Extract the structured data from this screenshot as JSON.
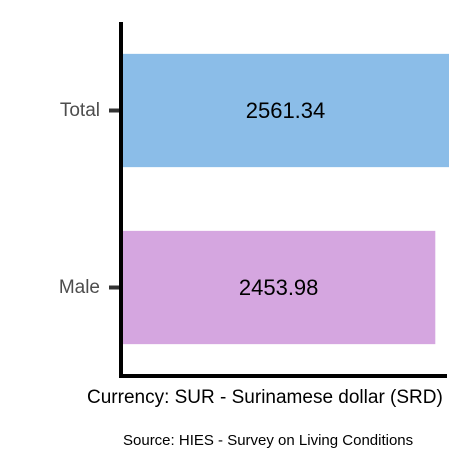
{
  "chart_data": {
    "type": "bar",
    "orientation": "horizontal",
    "categories": [
      "Total",
      "Male"
    ],
    "values": [
      2561.34,
      2453.98
    ],
    "data_labels": [
      "2561.34",
      "2453.98"
    ],
    "xlabel": "Currency: SUR - Surinamese dollar (SRD)",
    "caption": "Source:  HIES - Survey on Living Conditions",
    "xlim": [
      0,
      2561.34
    ],
    "grid": false,
    "legend": "none",
    "colors": [
      "#8bbde8",
      "#d5a6e0"
    ]
  }
}
